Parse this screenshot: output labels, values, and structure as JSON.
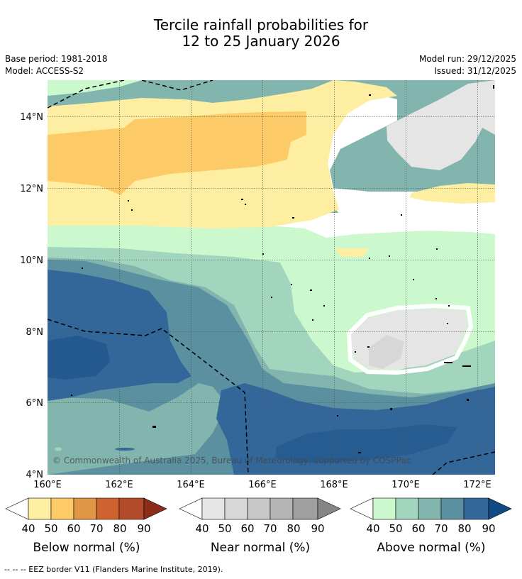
{
  "header": {
    "title_line1": "Tercile rainfall probabilities for",
    "title_line2": "12 to 25 January 2026",
    "base_period": "Base period: 1981-2018",
    "model": "Model: ACCESS-S2",
    "model_run": "Model run: 29/12/2025",
    "issued": "Issued: 31/12/2025"
  },
  "map": {
    "lat_labels": [
      "14°N",
      "12°N",
      "10°N",
      "8°N",
      "6°N",
      "4°N"
    ],
    "lon_labels": [
      "160°E",
      "162°E",
      "164°E",
      "166°E",
      "168°E",
      "170°E",
      "172°E"
    ],
    "copyright": "© Commonwealth of Australia 2025, Bureau of Meteorology, supported by COSPPac"
  },
  "legend": {
    "ticks": [
      "40",
      "50",
      "60",
      "70",
      "80",
      "90"
    ],
    "below": {
      "label": "Below normal (%)",
      "colors": [
        "#fdeea1",
        "#fcca66",
        "#e19646",
        "#cf632f",
        "#b34a2a",
        "#8c2c1b"
      ]
    },
    "near": {
      "label": "Near normal (%)",
      "colors": [
        "#e5e5e5",
        "#d7d7d7",
        "#c7c7c7",
        "#b4b4b4",
        "#9f9f9f",
        "#858585"
      ]
    },
    "above": {
      "label": "Above normal (%)",
      "colors": [
        "#cbf8cc",
        "#a2d5be",
        "#82b5ad",
        "#5a90a0",
        "#336699",
        "#124a85"
      ]
    }
  },
  "footnote": "--  --  -- EEZ border V11 (Flanders Marine Institute, 2019)."
}
